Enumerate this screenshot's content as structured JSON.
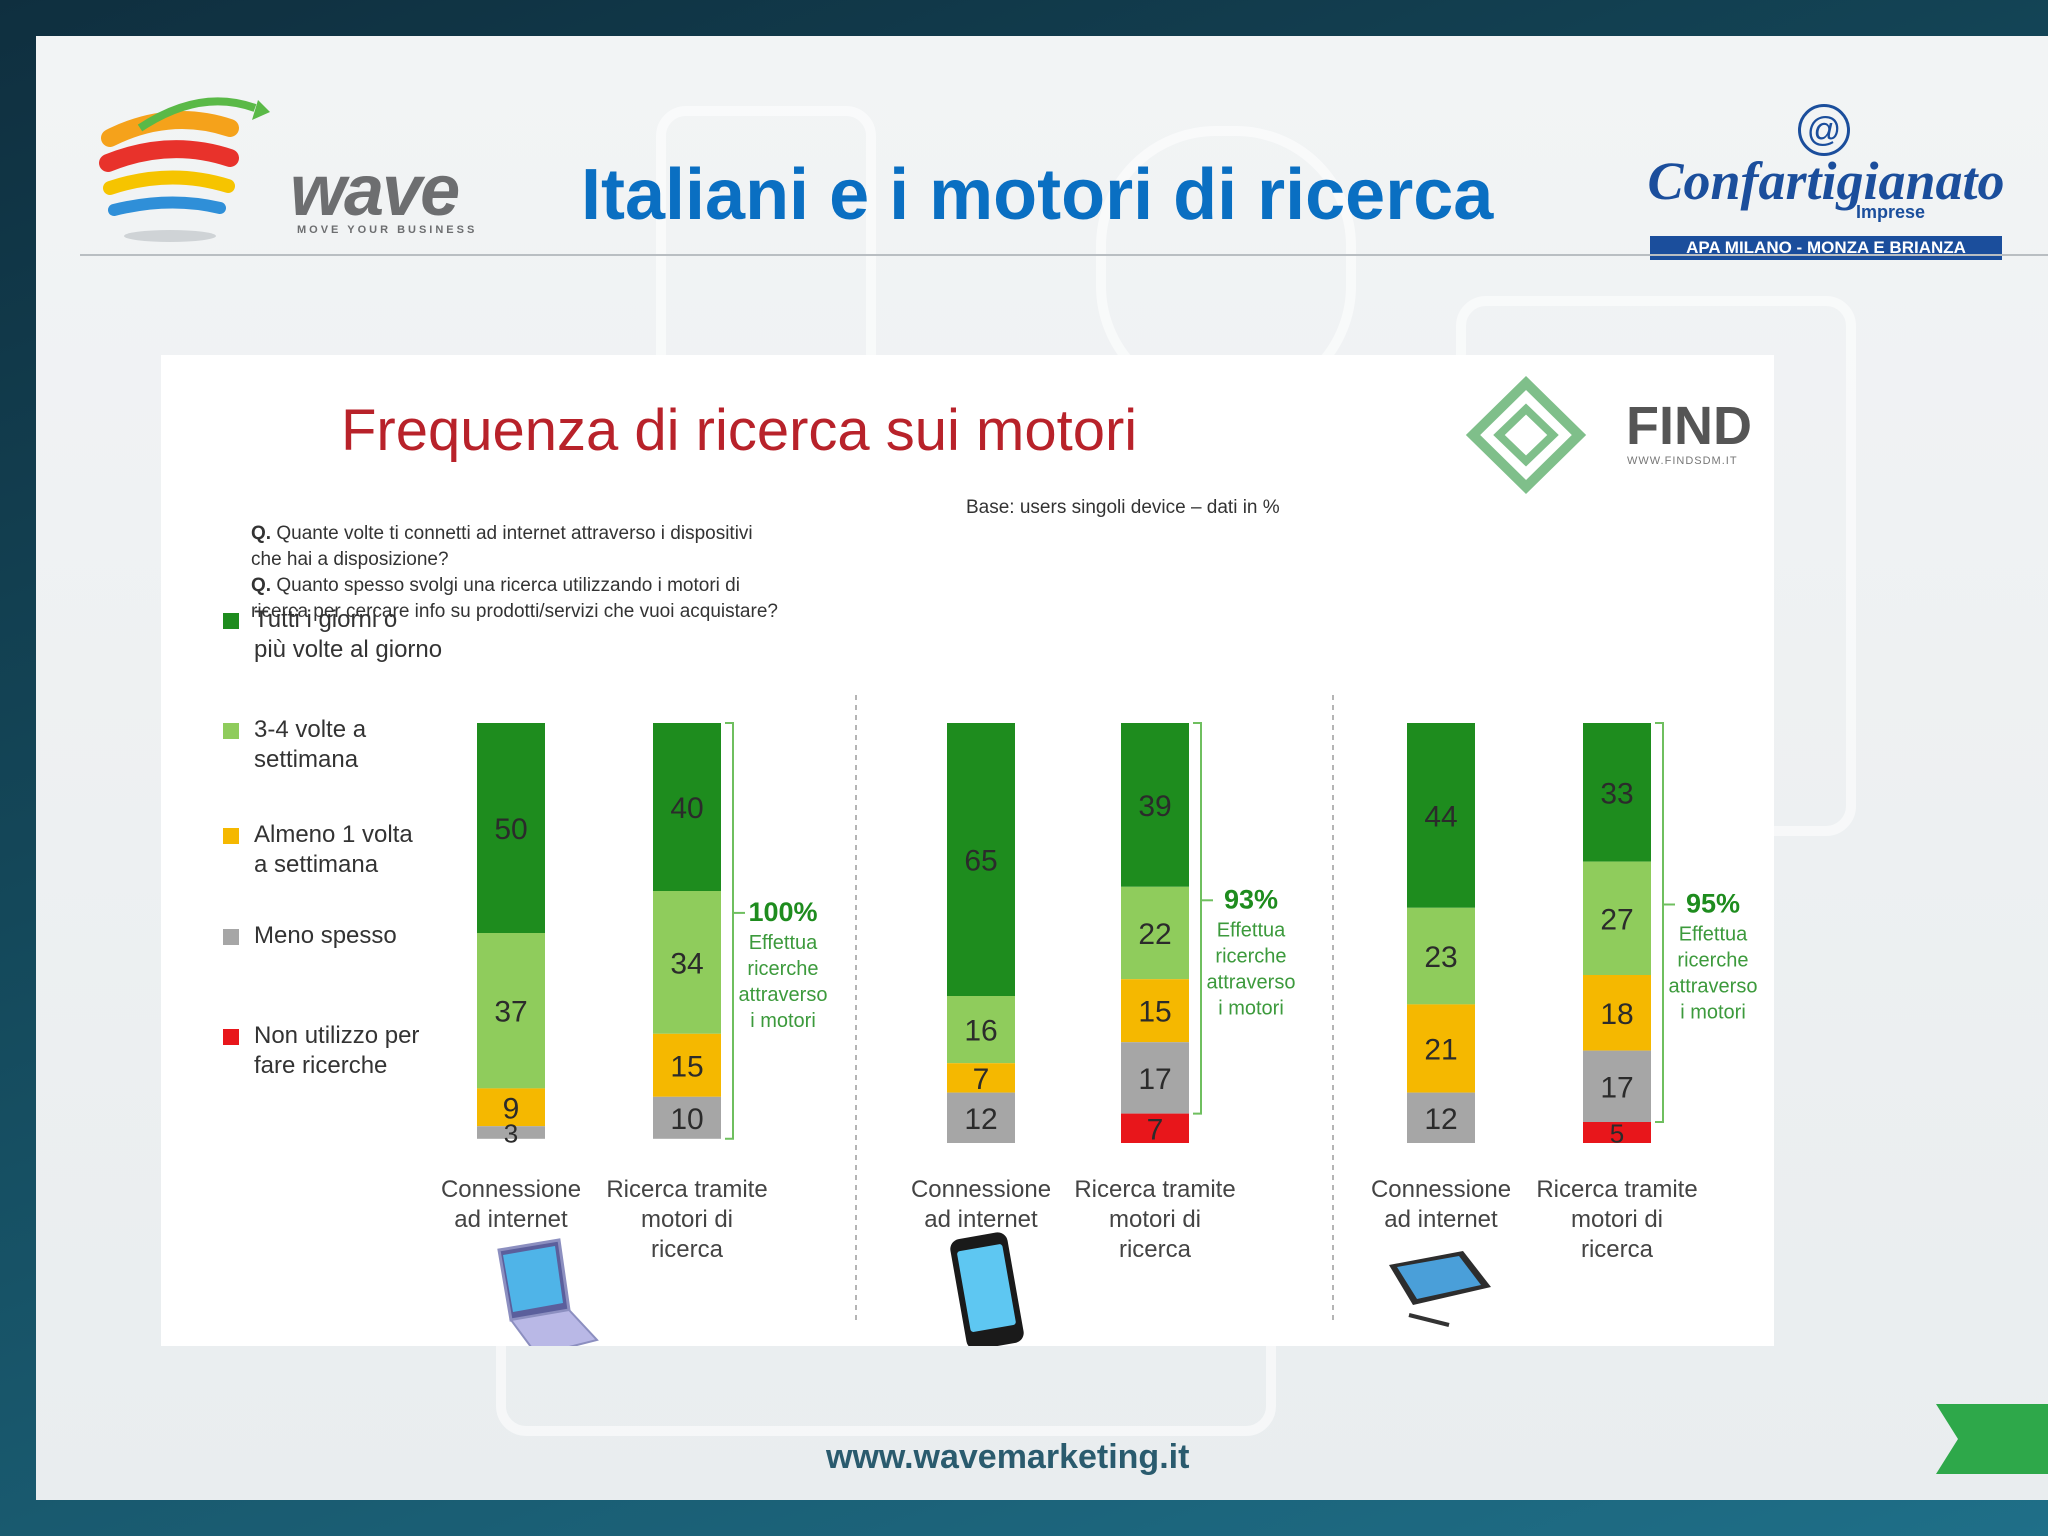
{
  "slide": {
    "title": "Italiani e i motori di ricerca",
    "footer_url": "www.wavemarketing.it"
  },
  "logos": {
    "wave": {
      "word": "wave",
      "tagline": "MOVE YOUR BUSINESS"
    },
    "confartigianato": {
      "at": "@",
      "word": "Confartigianato",
      "sub": "Imprese",
      "bar": "APA MILANO - MONZA E BRIANZA"
    },
    "find": {
      "word": "FIND",
      "url": "WWW.FINDSDM.IT"
    }
  },
  "chart_data": {
    "type": "bar",
    "stacked": true,
    "title": "Frequenza di ricerca sui motori",
    "questions": [
      {
        "prefix": "Q.",
        "lines": [
          "Quante volte ti connetti ad internet attraverso i dispositivi",
          "che hai a disposizione?"
        ]
      },
      {
        "prefix": "Q.",
        "lines": [
          "Quanto spesso svolgi una ricerca utilizzando i motori di",
          "ricerca per cercare info su prodotti/servizi che vuoi acquistare?"
        ]
      }
    ],
    "base_note": "Base: users  singoli device – dati in %",
    "legend": [
      {
        "lines": [
          "Tutti i giorni o",
          "più volte al giorno"
        ],
        "color": "#1e8c1e"
      },
      {
        "lines": [
          "3-4 volte a",
          "settimana"
        ],
        "color": "#8fcc5c"
      },
      {
        "lines": [
          "Almeno 1 volta",
          "a settimana"
        ],
        "color": "#f5b800"
      },
      {
        "lines": [
          "Meno spesso"
        ],
        "color": "#a6a6a6"
      },
      {
        "lines": [
          "Non utilizzo per",
          "fare ricerche"
        ],
        "color": "#e8161b"
      }
    ],
    "series_colors": [
      "#1e8c1e",
      "#8fcc5c",
      "#f5b800",
      "#a6a6a6",
      "#e8161b"
    ],
    "groups": [
      {
        "device": "laptop",
        "bars": [
          {
            "label": [
              "Connessione",
              "ad internet"
            ],
            "values": [
              50,
              37,
              9,
              3,
              0
            ]
          },
          {
            "label": [
              "Ricerca tramite",
              "motori di",
              "ricerca"
            ],
            "values": [
              40,
              34,
              15,
              10,
              0
            ]
          }
        ],
        "bracket": {
          "pct": "100%",
          "lines": [
            "Effettua",
            "ricerche",
            "attraverso",
            "i motori"
          ]
        }
      },
      {
        "device": "smartphone",
        "bars": [
          {
            "label": [
              "Connessione",
              "ad internet"
            ],
            "values": [
              65,
              16,
              7,
              12,
              0
            ]
          },
          {
            "label": [
              "Ricerca tramite",
              "motori di",
              "ricerca"
            ],
            "values": [
              39,
              22,
              15,
              17,
              7
            ]
          }
        ],
        "bracket": {
          "pct": "93%",
          "lines": [
            "Effettua",
            "ricerche",
            "attraverso",
            "i motori"
          ]
        }
      },
      {
        "device": "tablet",
        "bars": [
          {
            "label": [
              "Connessione",
              "ad internet"
            ],
            "values": [
              44,
              23,
              21,
              12,
              0
            ]
          },
          {
            "label": [
              "Ricerca tramite",
              "motori di",
              "ricerca"
            ],
            "values": [
              33,
              27,
              18,
              17,
              5
            ]
          }
        ],
        "bracket": {
          "pct": "95%",
          "lines": [
            "Effettua",
            "ricerche",
            "attraverso",
            "i motori"
          ]
        }
      }
    ]
  }
}
